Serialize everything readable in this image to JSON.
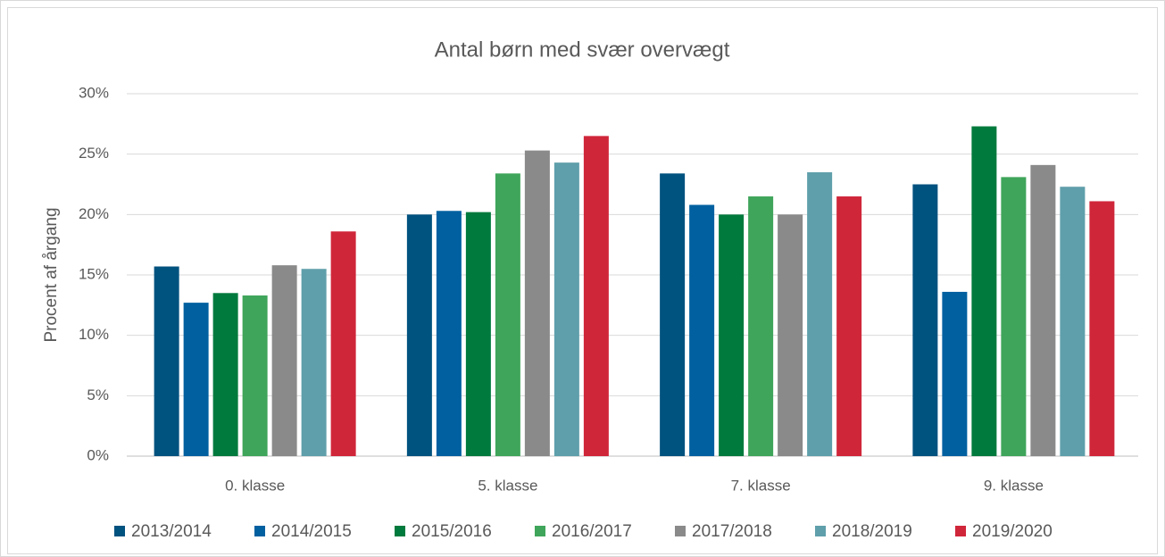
{
  "chart_data": {
    "type": "bar",
    "title": "Antal børn med svær overvægt",
    "y_label": "Procent af årgang",
    "categories": [
      "0. klasse",
      "5. klasse",
      "7. klasse",
      "9. klasse"
    ],
    "series": [
      {
        "name": "2013/2014",
        "color": "#00527f",
        "values": [
          15.7,
          20.0,
          23.4,
          22.5
        ]
      },
      {
        "name": "2014/2015",
        "color": "#0060a0",
        "values": [
          12.7,
          20.3,
          20.8,
          13.6
        ]
      },
      {
        "name": "2015/2016",
        "color": "#007a3d",
        "values": [
          13.5,
          20.2,
          20.0,
          27.3
        ]
      },
      {
        "name": "2016/2017",
        "color": "#3fa55a",
        "values": [
          13.3,
          23.4,
          21.5,
          23.1
        ]
      },
      {
        "name": "2017/2018",
        "color": "#8a8a8a",
        "values": [
          15.8,
          25.3,
          20.0,
          24.1
        ]
      },
      {
        "name": "2018/2019",
        "color": "#5f9fab",
        "values": [
          15.5,
          24.3,
          23.5,
          22.3
        ]
      },
      {
        "name": "2019/2020",
        "color": "#d0263a",
        "values": [
          18.6,
          26.5,
          21.5,
          21.1
        ]
      }
    ],
    "ylim": [
      0,
      30
    ],
    "yticks": [
      {
        "value": 0,
        "label": "0%"
      },
      {
        "value": 5,
        "label": "5%"
      },
      {
        "value": 10,
        "label": "10%"
      },
      {
        "value": 15,
        "label": "15%"
      },
      {
        "value": 20,
        "label": "20%"
      },
      {
        "value": 25,
        "label": "25%"
      },
      {
        "value": 30,
        "label": "30%"
      }
    ],
    "grid": true,
    "legend": "bottom"
  }
}
